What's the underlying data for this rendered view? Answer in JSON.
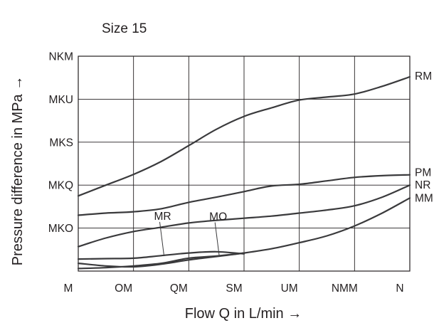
{
  "chart_data": {
    "type": "line",
    "title": "Size 15",
    "xlabel": "Flow Q in  L/min →",
    "ylabel": "Pressure difference in MPa →",
    "x_ticks": [
      "M",
      "OM",
      "QM",
      "SM",
      "UM",
      "NMM",
      "N"
    ],
    "y_ticks": [
      "NKM",
      "MKU",
      "MKS",
      "MKQ",
      "MKO"
    ],
    "grid": true,
    "series": [
      {
        "name": "RM",
        "x": [
          0,
          0.5,
          1,
          1.5,
          2,
          2.5,
          3,
          3.5,
          4,
          4.5,
          5,
          5.5,
          6
        ],
        "y": [
          1.75,
          2.0,
          2.25,
          2.55,
          2.92,
          3.3,
          3.6,
          3.8,
          3.98,
          4.05,
          4.12,
          4.3,
          4.52
        ]
      },
      {
        "name": "PM",
        "x": [
          0,
          0.5,
          1,
          1.5,
          2,
          2.5,
          3,
          3.5,
          4,
          4.5,
          5,
          5.5,
          6
        ],
        "y": [
          1.3,
          1.35,
          1.38,
          1.45,
          1.6,
          1.72,
          1.85,
          1.98,
          2.02,
          2.1,
          2.18,
          2.22,
          2.24
        ]
      },
      {
        "name": "NR",
        "x": [
          0,
          0.5,
          1,
          1.5,
          2,
          2.5,
          3,
          3.5,
          4,
          4.5,
          5,
          5.5,
          6
        ],
        "y": [
          0.57,
          0.77,
          0.92,
          1.02,
          1.12,
          1.18,
          1.23,
          1.28,
          1.35,
          1.42,
          1.52,
          1.72,
          2.0
        ]
      },
      {
        "name": "MM",
        "x": [
          0,
          0.5,
          1,
          1.5,
          2,
          2.5,
          3,
          3.5,
          4,
          4.5,
          5,
          5.5,
          6
        ],
        "y": [
          0.18,
          0.12,
          0.1,
          0.16,
          0.26,
          0.34,
          0.42,
          0.52,
          0.66,
          0.82,
          1.05,
          1.35,
          1.7
        ]
      },
      {
        "name": "MR",
        "x": [
          0,
          0.5,
          1,
          1.5,
          2,
          2.5,
          3
        ],
        "y": [
          0.28,
          0.29,
          0.3,
          0.36,
          0.42,
          0.45,
          0.4
        ]
      },
      {
        "name": "MO",
        "x": [
          0,
          0.5,
          1,
          1.5,
          2,
          2.5,
          3
        ],
        "y": [
          0.06,
          0.08,
          0.12,
          0.18,
          0.3,
          0.35,
          0.42
        ]
      }
    ]
  },
  "colors": {
    "ink": "#231f20",
    "curve": "#3a3a3c",
    "background": "#ffffff"
  }
}
